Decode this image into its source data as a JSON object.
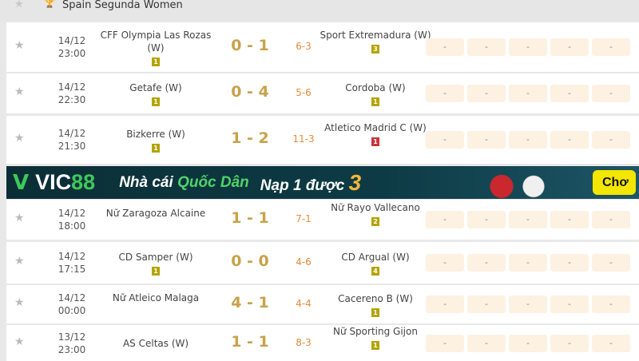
{
  "league": {
    "name": "Spain Segunda Women",
    "icon": "trophy-icon"
  },
  "matches": [
    {
      "date": "14/12",
      "time": "23:00",
      "home": "CFF Olympia Las Rozas (W)",
      "home_badge": "1",
      "score": "0 - 1",
      "ht": "6-3",
      "away": "Sport Extremadura (W)",
      "away_badge": "3",
      "away_badge_color": "#b3a400",
      "odds": [
        "-",
        "-",
        "-",
        "-",
        "-"
      ]
    },
    {
      "date": "14/12",
      "time": "22:30",
      "home": "Getafe (W)",
      "home_badge": "1",
      "score": "0 - 4",
      "ht": "5-6",
      "away": "Cordoba (W)",
      "away_badge": "1",
      "away_badge_color": "#b3a400",
      "odds": [
        "-",
        "-",
        "-",
        "-",
        "-"
      ]
    },
    {
      "date": "14/12",
      "time": "21:30",
      "home": "Bizkerre (W)",
      "home_badge": "1",
      "score": "1 - 2",
      "ht": "11-3",
      "away": "Atletico Madrid C (W)",
      "away_badge": "1",
      "away_badge_color": "#c9343a",
      "odds": [
        "-",
        "-",
        "-",
        "-",
        "-"
      ]
    },
    {
      "date": "14/12",
      "time": "18:00",
      "home": "Nữ Zaragoza Alcaine",
      "home_badge": "",
      "score": "1 - 1",
      "ht": "7-1",
      "away": "Nữ Rayo Vallecano",
      "away_badge": "2",
      "away_badge_color": "#b3a400",
      "odds": [
        "-",
        "-",
        "-",
        "-",
        "-"
      ]
    },
    {
      "date": "14/12",
      "time": "17:15",
      "home": "CD Samper (W)",
      "home_badge": "1",
      "score": "0 - 0",
      "ht": "4-6",
      "away": "CD Argual (W)",
      "away_badge": "4",
      "away_badge_color": "#b3a400",
      "odds": [
        "-",
        "-",
        "-",
        "-",
        "-"
      ]
    },
    {
      "date": "14/12",
      "time": "00:00",
      "home": "Nữ Atleico Malaga",
      "home_badge": "",
      "score": "4 - 1",
      "ht": "4-4",
      "away": "Cacereno B (W)",
      "away_badge": "1",
      "away_badge_color": "#b3a400",
      "odds": [
        "-",
        "-",
        "-",
        "-",
        "-"
      ]
    },
    {
      "date": "13/12",
      "time": "23:00",
      "home": "AS Celtas (W)",
      "home_badge": "",
      "score": "1 - 1",
      "ht": "8-3",
      "away": "Nữ Sporting Gijon",
      "away_badge": "1",
      "away_badge_color": "#b3a400",
      "odds": [
        "-",
        "-",
        "-",
        "-",
        "-"
      ]
    }
  ],
  "banner": {
    "brand": "VIC",
    "brand_num": "88",
    "slogan_a": "Nhà cái ",
    "slogan_b": "Quốc Dân",
    "promo": "Nạp 1 được ",
    "promo_num": "3",
    "cta": "Chơ"
  }
}
